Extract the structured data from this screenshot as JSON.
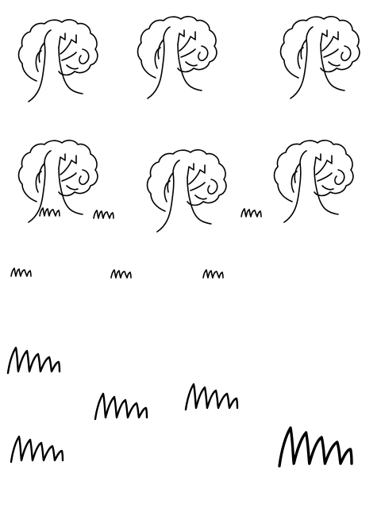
{
  "scene": {
    "description_items": [],
    "ink_color": "#000000",
    "background_color": "#ffffff",
    "trees": [
      {
        "id": "tree-1"
      },
      {
        "id": "tree-2"
      },
      {
        "id": "tree-3"
      },
      {
        "id": "tree-4"
      },
      {
        "id": "tree-5"
      },
      {
        "id": "tree-6"
      }
    ],
    "grass_tufts": [
      {
        "id": "grass-1"
      },
      {
        "id": "grass-2"
      },
      {
        "id": "grass-3"
      },
      {
        "id": "grass-4"
      },
      {
        "id": "grass-5"
      },
      {
        "id": "grass-6"
      },
      {
        "id": "grass-7"
      },
      {
        "id": "grass-8"
      },
      {
        "id": "grass-9"
      },
      {
        "id": "grass-10"
      },
      {
        "id": "grass-11"
      },
      {
        "id": "grass-12"
      }
    ]
  }
}
